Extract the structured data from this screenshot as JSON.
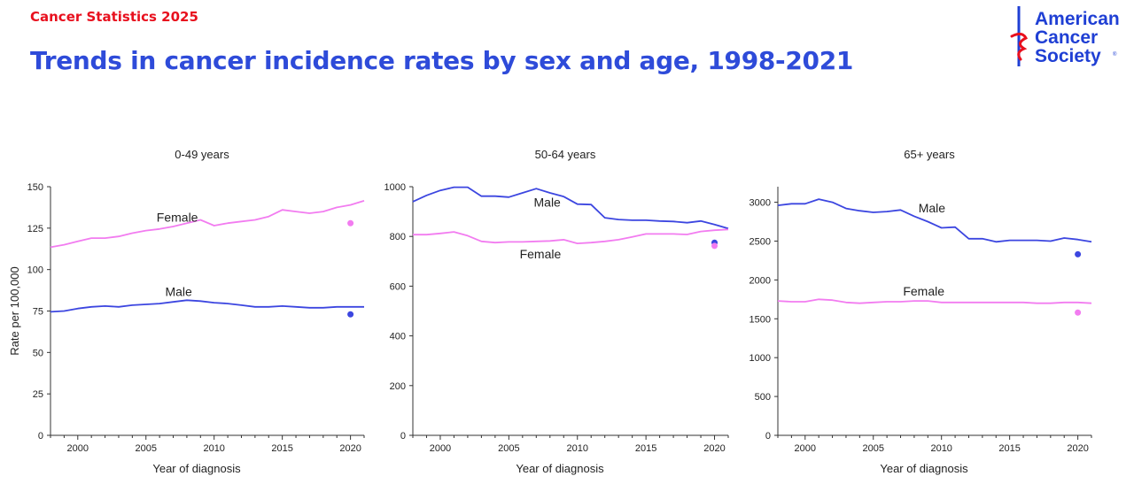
{
  "header": {
    "kicker": "Cancer Statistics 2025",
    "title": "Trends in cancer incidence rates by sex and age, 1998-2021"
  },
  "logo": {
    "lines": [
      "American",
      "Cancer",
      "Society"
    ],
    "registered": "®"
  },
  "colors": {
    "male": "#3c46e0",
    "female": "#f27cf0",
    "kicker": "#e8101e",
    "title": "#2e4bd9"
  },
  "chart_data": [
    {
      "type": "line",
      "title": "0-49 years",
      "xlabel": "Year of diagnosis",
      "ylabel": "Rate per 100,000",
      "xlim": [
        1998,
        2021
      ],
      "ylim": [
        0,
        150
      ],
      "xticks": [
        2000,
        2005,
        2010,
        2015,
        2020
      ],
      "yticks": [
        0,
        25,
        50,
        75,
        100,
        125,
        150
      ],
      "x": [
        1998,
        1999,
        2000,
        2001,
        2002,
        2003,
        2004,
        2005,
        2006,
        2007,
        2008,
        2009,
        2010,
        2011,
        2012,
        2013,
        2014,
        2015,
        2016,
        2017,
        2018,
        2019,
        2020,
        2021
      ],
      "series": [
        {
          "name": "Female",
          "color": "#f27cf0",
          "label_pos": [
            2007.3,
            129
          ],
          "values": [
            113.5,
            115,
            117,
            119,
            119,
            120,
            122,
            123.5,
            124.5,
            126,
            128,
            130,
            126.5,
            128,
            129,
            130,
            132,
            136,
            135,
            134,
            135,
            137.5,
            139,
            141.5
          ],
          "point": {
            "x": 2020,
            "y": 128
          }
        },
        {
          "name": "Male",
          "color": "#3c46e0",
          "label_pos": [
            2007.4,
            84
          ],
          "values": [
            74.5,
            75,
            76.5,
            77.5,
            78,
            77.5,
            78.5,
            79,
            79.5,
            80.5,
            81.5,
            81,
            80,
            79.5,
            78.5,
            77.5,
            77.5,
            78,
            77.5,
            77,
            77,
            77.5,
            77.5,
            77.5
          ],
          "point": {
            "x": 2020,
            "y": 73
          }
        }
      ]
    },
    {
      "type": "line",
      "title": "50-64 years",
      "xlabel": "Year of diagnosis",
      "ylabel": "",
      "xlim": [
        1998,
        2021
      ],
      "ylim": [
        0,
        1000
      ],
      "xticks": [
        2000,
        2005,
        2010,
        2015,
        2020
      ],
      "yticks": [
        0,
        200,
        400,
        600,
        800,
        1000
      ],
      "x": [
        1998,
        1999,
        2000,
        2001,
        2002,
        2003,
        2004,
        2005,
        2006,
        2007,
        2008,
        2009,
        2010,
        2011,
        2012,
        2013,
        2014,
        2015,
        2016,
        2017,
        2018,
        2019,
        2020,
        2021
      ],
      "series": [
        {
          "name": "Male",
          "color": "#3c46e0",
          "label_pos": [
            2007.8,
            920
          ],
          "values": [
            940,
            965,
            985,
            998,
            998,
            962,
            962,
            958,
            975,
            992,
            975,
            960,
            930,
            928,
            875,
            868,
            865,
            865,
            862,
            860,
            855,
            862,
            848,
            832
          ],
          "point": {
            "x": 2020,
            "y": 775
          }
        },
        {
          "name": "Female",
          "color": "#f27cf0",
          "label_pos": [
            2007.3,
            712
          ],
          "values": [
            807,
            807,
            812,
            818,
            803,
            780,
            775,
            778,
            778,
            780,
            782,
            787,
            772,
            775,
            780,
            787,
            798,
            810,
            810,
            810,
            808,
            820,
            825,
            828
          ],
          "point": {
            "x": 2020,
            "y": 762
          }
        }
      ]
    },
    {
      "type": "line",
      "title": "65+ years",
      "xlabel": "Year of diagnosis",
      "ylabel": "",
      "xlim": [
        1998,
        2021
      ],
      "ylim": [
        0,
        3200
      ],
      "xticks": [
        2000,
        2005,
        2010,
        2015,
        2020
      ],
      "yticks": [
        0,
        500,
        1000,
        1500,
        2000,
        2500,
        3000
      ],
      "x": [
        1998,
        1999,
        2000,
        2001,
        2002,
        2003,
        2004,
        2005,
        2006,
        2007,
        2008,
        2009,
        2010,
        2011,
        2012,
        2013,
        2014,
        2015,
        2016,
        2017,
        2018,
        2019,
        2020,
        2021
      ],
      "series": [
        {
          "name": "Male",
          "color": "#3c46e0",
          "label_pos": [
            2009.3,
            2870
          ],
          "values": [
            2960,
            2980,
            2980,
            3040,
            3000,
            2920,
            2890,
            2870,
            2880,
            2900,
            2820,
            2750,
            2670,
            2680,
            2530,
            2530,
            2490,
            2510,
            2510,
            2510,
            2500,
            2540,
            2520,
            2490
          ],
          "point": {
            "x": 2020,
            "y": 2330
          }
        },
        {
          "name": "Female",
          "color": "#f27cf0",
          "label_pos": [
            2008.7,
            1800
          ],
          "values": [
            1730,
            1720,
            1720,
            1750,
            1740,
            1710,
            1700,
            1710,
            1720,
            1720,
            1730,
            1730,
            1710,
            1710,
            1710,
            1710,
            1710,
            1710,
            1710,
            1700,
            1700,
            1710,
            1710,
            1700
          ],
          "point": {
            "x": 2020,
            "y": 1580
          }
        }
      ]
    }
  ]
}
